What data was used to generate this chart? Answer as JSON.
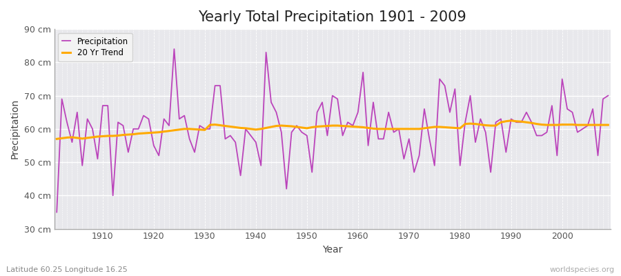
{
  "title": "Yearly Total Precipitation 1901 - 2009",
  "xlabel": "Year",
  "ylabel": "Precipitation",
  "subtitle": "Latitude 60.25 Longitude 16.25",
  "watermark": "worldspecies.org",
  "ylim": [
    30,
    90
  ],
  "yticks": [
    30,
    40,
    50,
    60,
    70,
    80,
    90
  ],
  "ytick_labels": [
    "30 cm",
    "40 cm",
    "50 cm",
    "60 cm",
    "70 cm",
    "80 cm",
    "90 cm"
  ],
  "xlim": [
    1901,
    2009
  ],
  "precip_color": "#bb44bb",
  "trend_color": "#ffaa00",
  "bg_color": "#ffffff",
  "plot_bg_color": "#e8e8ec",
  "grid_color": "#ffffff",
  "title_fontsize": 15,
  "years": [
    1901,
    1902,
    1903,
    1904,
    1905,
    1906,
    1907,
    1908,
    1909,
    1910,
    1911,
    1912,
    1913,
    1914,
    1915,
    1916,
    1917,
    1918,
    1919,
    1920,
    1921,
    1922,
    1923,
    1924,
    1925,
    1926,
    1927,
    1928,
    1929,
    1930,
    1931,
    1932,
    1933,
    1934,
    1935,
    1936,
    1937,
    1938,
    1939,
    1940,
    1941,
    1942,
    1943,
    1944,
    1945,
    1946,
    1947,
    1948,
    1949,
    1950,
    1951,
    1952,
    1953,
    1954,
    1955,
    1956,
    1957,
    1958,
    1959,
    1960,
    1961,
    1962,
    1963,
    1964,
    1965,
    1966,
    1967,
    1968,
    1969,
    1970,
    1971,
    1972,
    1973,
    1974,
    1975,
    1976,
    1977,
    1978,
    1979,
    1980,
    1981,
    1982,
    1983,
    1984,
    1985,
    1986,
    1987,
    1988,
    1989,
    1990,
    1991,
    1992,
    1993,
    1994,
    1995,
    1996,
    1997,
    1998,
    1999,
    2000,
    2001,
    2002,
    2003,
    2004,
    2005,
    2006,
    2007,
    2008,
    2009
  ],
  "precipitation": [
    35,
    69,
    62,
    56,
    65,
    49,
    63,
    60,
    51,
    67,
    67,
    40,
    62,
    61,
    53,
    60,
    60,
    64,
    63,
    55,
    52,
    63,
    61,
    84,
    63,
    64,
    57,
    53,
    61,
    60,
    60,
    73,
    73,
    57,
    58,
    56,
    46,
    60,
    58,
    56,
    49,
    83,
    68,
    65,
    59,
    42,
    59,
    61,
    59,
    58,
    47,
    65,
    68,
    58,
    70,
    69,
    58,
    62,
    61,
    65,
    77,
    55,
    68,
    57,
    57,
    65,
    59,
    60,
    51,
    57,
    47,
    52,
    66,
    57,
    49,
    75,
    73,
    65,
    72,
    49,
    62,
    70,
    56,
    63,
    59,
    47,
    62,
    63,
    53,
    63,
    62,
    62,
    65,
    62,
    58,
    58,
    59,
    67,
    52,
    75,
    66,
    65,
    59,
    60,
    61,
    66,
    52,
    69,
    70
  ],
  "trend": [
    57.0,
    57.2,
    57.4,
    57.5,
    57.3,
    57.1,
    57.3,
    57.5,
    57.7,
    57.8,
    57.9,
    57.9,
    58.0,
    58.2,
    58.3,
    58.4,
    58.6,
    58.7,
    58.8,
    58.9,
    59.0,
    59.2,
    59.4,
    59.6,
    59.8,
    60.0,
    60.0,
    59.9,
    59.8,
    59.7,
    61.2,
    61.3,
    61.1,
    60.9,
    60.7,
    60.5,
    60.3,
    60.2,
    60.0,
    59.8,
    60.0,
    60.3,
    60.6,
    60.9,
    61.0,
    60.9,
    60.8,
    60.6,
    60.4,
    60.2,
    60.5,
    60.7,
    60.8,
    60.9,
    61.0,
    61.0,
    60.9,
    60.8,
    60.7,
    60.6,
    60.5,
    60.3,
    60.1,
    60.0,
    60.0,
    60.0,
    60.0,
    60.0,
    60.0,
    60.0,
    60.0,
    60.0,
    60.2,
    60.4,
    60.6,
    60.6,
    60.5,
    60.4,
    60.3,
    60.2,
    61.5,
    61.6,
    61.5,
    61.3,
    61.1,
    61.0,
    61.0,
    62.0,
    62.3,
    62.5,
    62.3,
    62.2,
    62.0,
    61.8,
    61.5,
    61.3,
    61.2,
    61.2,
    61.2,
    61.3,
    61.3,
    61.3,
    61.2,
    61.2,
    61.2,
    61.2,
    61.2,
    61.2,
    61.2
  ]
}
